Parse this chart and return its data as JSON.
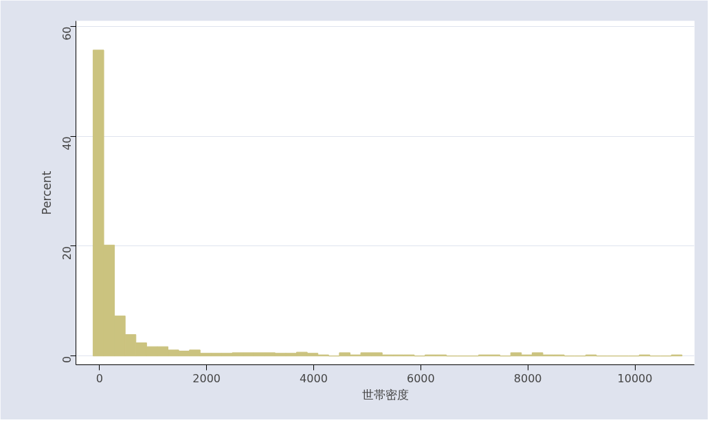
{
  "chart_data": {
    "type": "histogram",
    "xlabel": "世帯密度",
    "ylabel": "Percent",
    "color": "#cbc37f",
    "bins": [
      -120,
      80,
      280,
      480,
      680,
      880,
      1080,
      1280,
      1480,
      1680,
      1880,
      2080,
      2280,
      2480,
      2680,
      2880,
      3080,
      3280,
      3480,
      3680,
      3880,
      4080,
      4280,
      4480,
      4680,
      4880,
      5080,
      5280,
      5480,
      5680,
      5880,
      6080,
      6280,
      6480,
      6680,
      6880,
      7080,
      7280,
      7480,
      7680,
      7880,
      8080,
      8280,
      8480,
      8680,
      8880,
      9080,
      9280,
      9480,
      9680,
      9880,
      10080,
      10280,
      10480,
      10680,
      10880
    ],
    "values": [
      55.7,
      20.2,
      7.3,
      3.9,
      2.4,
      1.7,
      1.7,
      1.1,
      0.9,
      1.1,
      0.5,
      0.5,
      0.5,
      0.6,
      0.6,
      0.6,
      0.6,
      0.5,
      0.5,
      0.7,
      0.5,
      0.2,
      0,
      0.6,
      0.2,
      0.6,
      0.6,
      0.2,
      0.2,
      0.2,
      0,
      0.2,
      0.2,
      0,
      0,
      0,
      0.2,
      0.2,
      0,
      0.6,
      0.2,
      0.6,
      0.2,
      0.2,
      0,
      0,
      0.2,
      0,
      0,
      0,
      0,
      0.2,
      0,
      0,
      0.2
    ],
    "xlim": [
      -440,
      11110
    ],
    "ylim": [
      -1.6,
      61
    ],
    "xticks": [
      0,
      2000,
      4000,
      6000,
      8000,
      10000
    ],
    "yticks": [
      0,
      20,
      40,
      60
    ],
    "grid": "y"
  }
}
